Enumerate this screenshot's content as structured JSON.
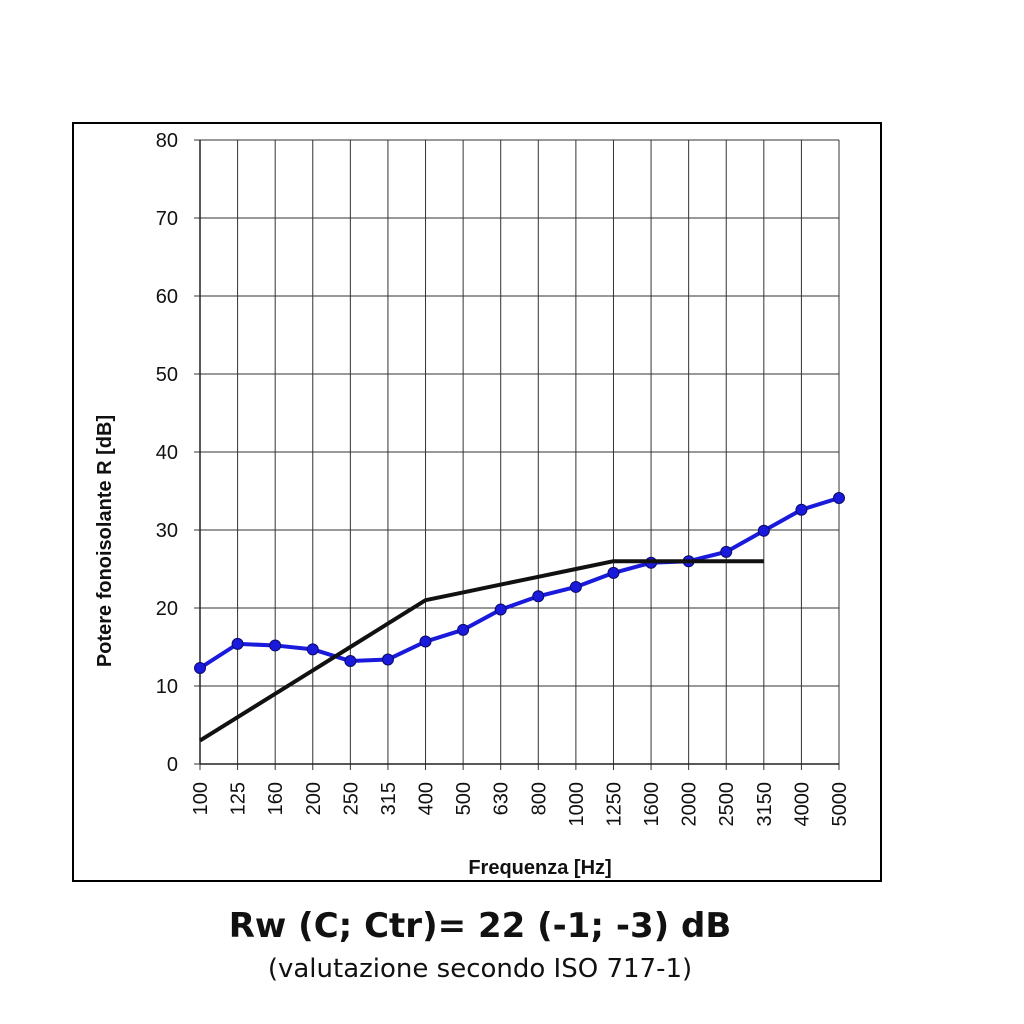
{
  "chart_data": {
    "type": "line",
    "xlabel": "Frequenza [Hz]",
    "ylabel": "Potere fonoisolante R [dB]",
    "categories": [
      "100",
      "125",
      "160",
      "200",
      "250",
      "315",
      "400",
      "500",
      "630",
      "800",
      "1000",
      "1250",
      "1600",
      "2000",
      "2500",
      "3150",
      "4000",
      "5000"
    ],
    "ylim": [
      0,
      80
    ],
    "yticks": [
      0,
      10,
      20,
      30,
      40,
      50,
      60,
      70,
      80
    ],
    "grid": true,
    "series": [
      {
        "color": "#1a1adc",
        "markers": true,
        "values": [
          12.3,
          15.4,
          15.2,
          14.7,
          13.2,
          13.4,
          15.7,
          17.2,
          19.8,
          21.5,
          22.7,
          24.5,
          25.8,
          26.0,
          27.2,
          29.9,
          32.6,
          34.1
        ]
      },
      {
        "color": "#111111",
        "markers": false,
        "values": [
          3,
          6,
          9,
          12,
          15,
          18,
          21,
          22,
          23,
          24,
          25,
          26,
          26,
          26,
          26,
          26,
          null,
          null
        ]
      }
    ]
  },
  "caption": {
    "main": "Rw (C; Ctr)= 22 (-1; -3) dB",
    "sub": "(valutazione secondo ISO 717-1)"
  }
}
